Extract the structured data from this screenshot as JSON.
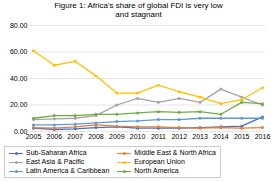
{
  "chart_data": {
    "type": "line",
    "title": "Figure 1: Africa's share of global FDI is very low\nand stagnant",
    "x": [
      2005,
      2006,
      2007,
      2008,
      2009,
      2010,
      2011,
      2012,
      2013,
      2014,
      2015,
      2016
    ],
    "xlim": [
      2005,
      2016
    ],
    "xticks": [
      2005,
      2006,
      2007,
      2008,
      2009,
      2010,
      2011,
      2012,
      2013,
      2014,
      2015,
      2016
    ],
    "ylim": [
      0,
      80
    ],
    "yticks": [
      {
        "value": 0,
        "label": "0.00"
      },
      {
        "value": 20,
        "label": "20.00"
      },
      {
        "value": 40,
        "label": "40.00"
      },
      {
        "value": 60,
        "label": "60.00"
      },
      {
        "value": 80,
        "label": "80.00"
      }
    ],
    "grid": true,
    "legend": "bottom",
    "marker": "circle",
    "series": [
      {
        "name": "Sub-Saharan Africa",
        "color": "#4472C4",
        "values": [
          2.5,
          1.5,
          2.0,
          3.0,
          3.5,
          2.5,
          2.5,
          2.5,
          3.0,
          3.5,
          4.0,
          11.0
        ]
      },
      {
        "name": "Middle East & North Africa",
        "color": "#ED7D31",
        "values": [
          3.0,
          2.5,
          3.5,
          5.0,
          4.0,
          3.5,
          3.5,
          3.0,
          2.5,
          3.0,
          2.5,
          3.0
        ]
      },
      {
        "name": "East Asia & Pacific",
        "color": "#A5A5A5",
        "values": [
          9.0,
          9.5,
          10.0,
          12.0,
          20.0,
          25.0,
          22.0,
          25.0,
          22.0,
          32.0,
          26.0,
          20.0
        ]
      },
      {
        "name": "European Union",
        "color": "#FFC000",
        "values": [
          61.0,
          50.0,
          53.0,
          42.0,
          29.0,
          29.0,
          35.0,
          30.0,
          26.0,
          21.0,
          24.0,
          33.0
        ]
      },
      {
        "name": "Latin America & Caribbean",
        "color": "#5B9BD5",
        "values": [
          5.0,
          5.0,
          5.5,
          6.5,
          7.5,
          8.0,
          9.0,
          9.0,
          10.0,
          10.0,
          10.0,
          10.0
        ]
      },
      {
        "name": "North America",
        "color": "#70AD47",
        "values": [
          10.0,
          12.0,
          12.0,
          13.0,
          13.0,
          14.0,
          15.0,
          14.5,
          15.0,
          13.0,
          22.0,
          21.0
        ]
      }
    ]
  }
}
